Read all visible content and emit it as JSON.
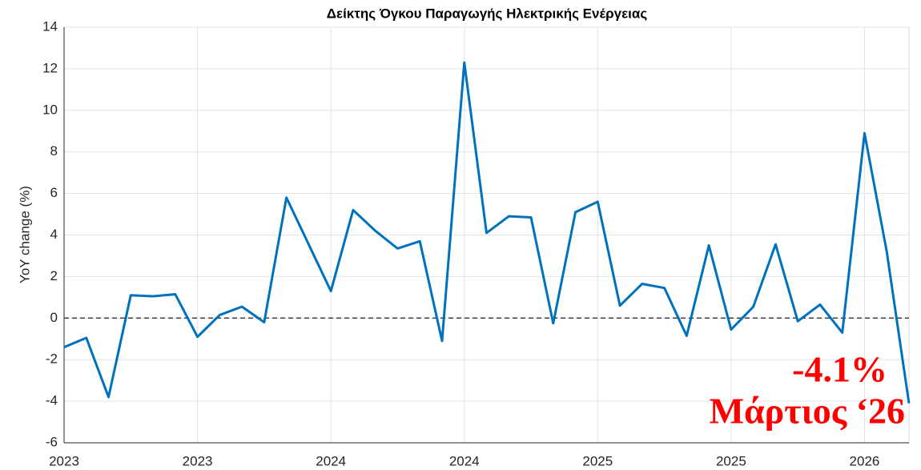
{
  "chart_data": {
    "type": "line",
    "title": "Δείκτης Όγκου Παραγωγής Ηλεκτρικής Ενέργειας",
    "y_label": "YoY change (%)",
    "categories": [
      "2023",
      null,
      null,
      null,
      null,
      null,
      "2023",
      null,
      null,
      null,
      null,
      null,
      "2024",
      null,
      null,
      null,
      null,
      null,
      "2024",
      null,
      null,
      null,
      null,
      null,
      "2025",
      null,
      null,
      null,
      null,
      null,
      "2025",
      null,
      null,
      null,
      null,
      null,
      "2026",
      null,
      null
    ],
    "series": [
      {
        "name": "YoY change",
        "color": "#0072bd",
        "values": [
          -1.4,
          -0.95,
          -3.8,
          1.1,
          1.05,
          1.15,
          -0.9,
          0.15,
          0.55,
          -0.2,
          5.8,
          3.55,
          1.3,
          5.2,
          4.2,
          3.35,
          3.7,
          -1.1,
          12.3,
          4.1,
          4.9,
          4.85,
          -0.25,
          5.1,
          5.6,
          0.6,
          1.65,
          1.45,
          -0.85,
          3.5,
          -0.55,
          0.55,
          3.55,
          -0.15,
          0.65,
          -0.7,
          8.9,
          3.2,
          -4.1
        ]
      }
    ],
    "ylim": [
      -6,
      14
    ],
    "yticks": [
      -6,
      -4,
      -2,
      0,
      2,
      4,
      6,
      8,
      10,
      12,
      14
    ],
    "grid": true,
    "reference_line": 0,
    "annotations": [
      "-4.1%",
      "Μάρτιος ‘26"
    ]
  }
}
